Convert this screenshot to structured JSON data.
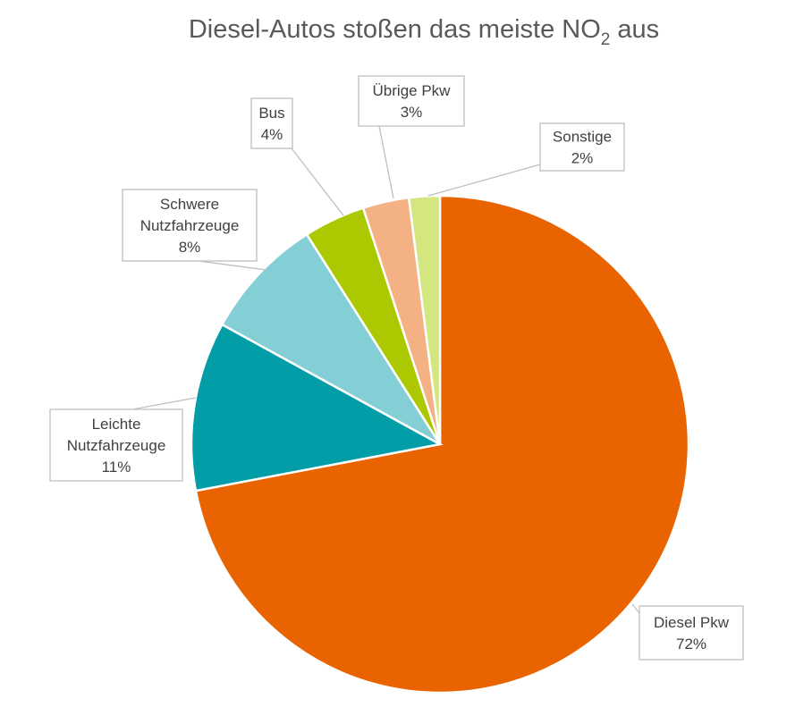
{
  "chart_data": {
    "type": "pie",
    "title": "Diesel-Autos stoßen das meiste NO",
    "title_subscript": "2",
    "title_suffix": " aus",
    "start_angle_deg": 0,
    "direction": "clockwise",
    "legend": "none",
    "slices": [
      {
        "label_lines": [
          "Diesel Pkw"
        ],
        "value": 72,
        "value_label": "72%",
        "color": "#E96400"
      },
      {
        "label_lines": [
          "Leichte",
          "Nutzfahrzeuge"
        ],
        "value": 11,
        "value_label": "11%",
        "color": "#039DA8"
      },
      {
        "label_lines": [
          "Schwere",
          "Nutzfahrzeuge"
        ],
        "value": 8,
        "value_label": "8%",
        "color": "#83CFD5"
      },
      {
        "label_lines": [
          "Bus"
        ],
        "value": 4,
        "value_label": "4%",
        "color": "#ACC800"
      },
      {
        "label_lines": [
          "Übrige Pkw"
        ],
        "value": 3,
        "value_label": "3%",
        "color": "#F4B183"
      },
      {
        "label_lines": [
          "Sonstige"
        ],
        "value": 2,
        "value_label": "2%",
        "color": "#D4E67F"
      }
    ]
  }
}
